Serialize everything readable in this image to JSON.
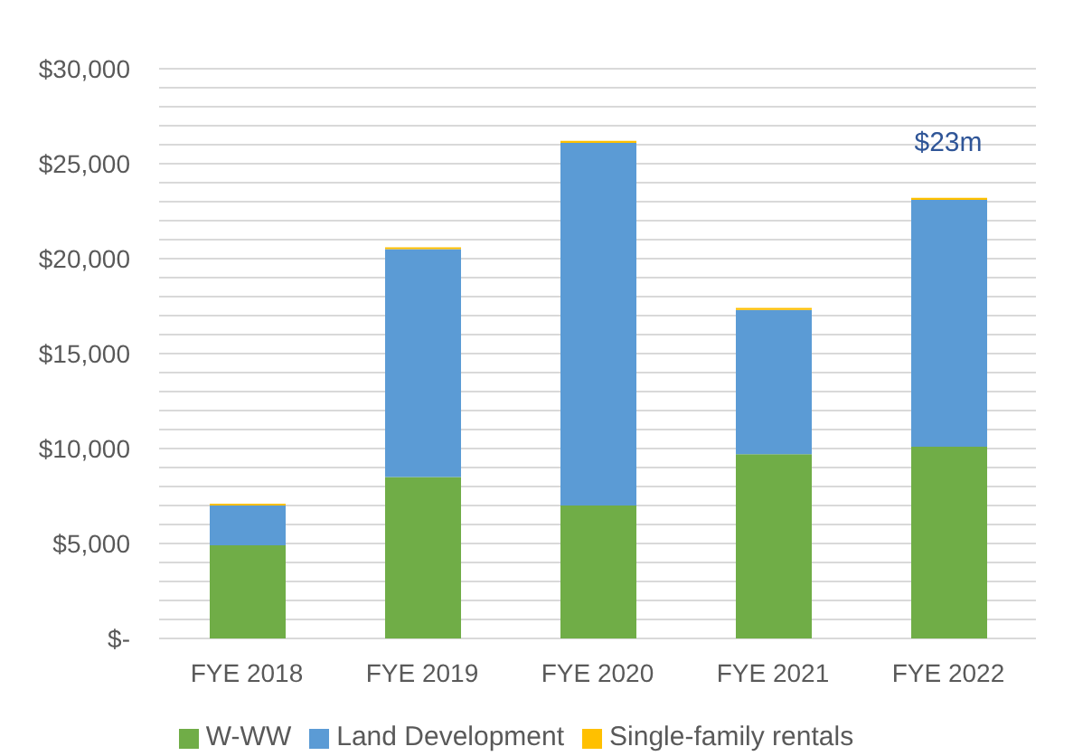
{
  "chart_data": {
    "type": "bar",
    "stacked": true,
    "categories": [
      "FYE 2018",
      "FYE 2019",
      "FYE 2020",
      "FYE 2021",
      "FYE 2022"
    ],
    "series": [
      {
        "name": "W-WW",
        "color": "#70ad47",
        "values": [
          4900,
          8500,
          7000,
          9700,
          10100
        ]
      },
      {
        "name": "Land Development",
        "color": "#5b9bd5",
        "values": [
          2100,
          12000,
          19100,
          7600,
          13000
        ]
      },
      {
        "name": "Single-family rentals",
        "color": "#ffc000",
        "values": [
          100,
          100,
          100,
          100,
          100
        ]
      }
    ],
    "ylim": [
      0,
      30000
    ],
    "yticks": [
      {
        "value": 0,
        "label": "$-"
      },
      {
        "value": 1000,
        "label": null
      },
      {
        "value": 2000,
        "label": null
      },
      {
        "value": 3000,
        "label": null
      },
      {
        "value": 4000,
        "label": null
      },
      {
        "value": 5000,
        "label": "$5,000"
      },
      {
        "value": 6000,
        "label": null
      },
      {
        "value": 7000,
        "label": null
      },
      {
        "value": 8000,
        "label": null
      },
      {
        "value": 9000,
        "label": null
      },
      {
        "value": 10000,
        "label": "$10,000"
      },
      {
        "value": 11000,
        "label": null
      },
      {
        "value": 12000,
        "label": null
      },
      {
        "value": 13000,
        "label": null
      },
      {
        "value": 14000,
        "label": null
      },
      {
        "value": 15000,
        "label": "$15,000"
      },
      {
        "value": 16000,
        "label": null
      },
      {
        "value": 17000,
        "label": null
      },
      {
        "value": 18000,
        "label": null
      },
      {
        "value": 19000,
        "label": null
      },
      {
        "value": 20000,
        "label": "$20,000"
      },
      {
        "value": 21000,
        "label": null
      },
      {
        "value": 22000,
        "label": null
      },
      {
        "value": 23000,
        "label": null
      },
      {
        "value": 24000,
        "label": null
      },
      {
        "value": 25000,
        "label": "$25,000"
      },
      {
        "value": 26000,
        "label": null
      },
      {
        "value": 27000,
        "label": null
      },
      {
        "value": 28000,
        "label": null
      },
      {
        "value": 29000,
        "label": null
      },
      {
        "value": 30000,
        "label": "$30,000"
      }
    ],
    "grid": "y",
    "legend": "bottom",
    "annotations": [
      {
        "text": "$23m",
        "x": "FYE 2022",
        "y": 23200
      }
    ]
  }
}
